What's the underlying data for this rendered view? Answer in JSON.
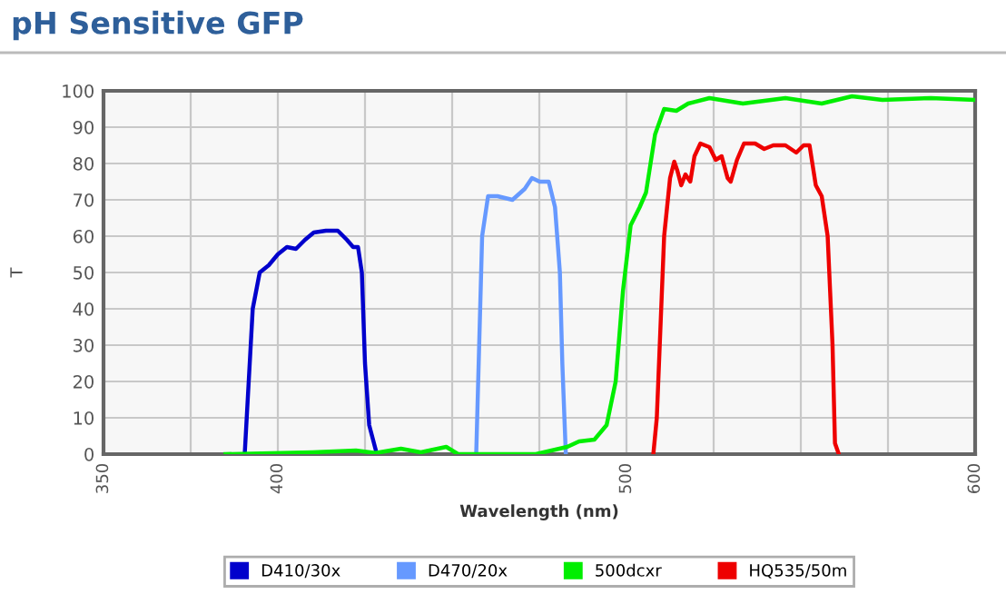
{
  "chart_data": {
    "type": "line",
    "title": "pH Sensitive GFP",
    "xlabel": "Wavelength (nm)",
    "ylabel": "T",
    "xlim": [
      350,
      600
    ],
    "ylim": [
      0,
      100
    ],
    "xticks": [
      350,
      {
        "value": 375,
        "label": null
      },
      400,
      {
        "value": 425,
        "label": null
      },
      {
        "value": 450,
        "label": null
      },
      {
        "value": 475,
        "label": null
      },
      500,
      {
        "value": 525,
        "label": null
      },
      {
        "value": 550,
        "label": null
      },
      {
        "value": 575,
        "label": null
      },
      600
    ],
    "yticks": [
      0,
      10,
      20,
      30,
      40,
      50,
      60,
      70,
      80,
      90,
      100
    ],
    "grid": true,
    "legend": "bottom",
    "marker": "none",
    "line_style": "solid",
    "series": [
      {
        "name": "D410/30x",
        "color": "#0000cc",
        "x": [
          390.5,
          392.8,
          394.8,
          397.4,
          400,
          402.6,
          405.2,
          407.8,
          410.3,
          413.8,
          417.2,
          419.8,
          421.6,
          423,
          424.1,
          425,
          426.2,
          428.4
        ],
        "values": [
          0,
          40,
          50,
          52,
          55,
          57,
          56.5,
          59,
          61,
          61.5,
          61.5,
          59,
          57,
          57,
          50,
          25,
          8,
          0
        ]
      },
      {
        "name": "D470/20x",
        "color": "#6699ff",
        "x": [
          456.9,
          458.6,
          460.3,
          463,
          467.3,
          470.8,
          472.9,
          475.1,
          477.7,
          479.5,
          480.9,
          481.6,
          482.6
        ],
        "values": [
          0,
          60,
          71,
          71,
          70,
          73,
          76,
          75,
          75,
          68,
          50,
          25,
          0
        ]
      },
      {
        "name": "500dcxr",
        "color": "#00ee00",
        "x": [
          385,
          410,
          422.4,
          428,
          435.3,
          441,
          448.3,
          451.7,
          474,
          483,
          486.4,
          490.8,
          494.3,
          496.9,
          499,
          501.2,
          503.8,
          505.6,
          508.2,
          510.8,
          514.3,
          517.7,
          523.8,
          533.4,
          545.6,
          556,
          564.7,
          573.4,
          587.3,
          599.5
        ],
        "values": [
          0,
          0.5,
          1,
          0.3,
          1.5,
          0.5,
          2,
          0,
          0,
          2,
          3.5,
          4,
          8,
          20,
          45,
          63,
          68,
          72,
          88,
          95,
          94.5,
          96.5,
          98,
          96.5,
          98,
          96.5,
          98.5,
          97.5,
          98,
          97.5
        ]
      },
      {
        "name": "HQ535/50m",
        "color": "#ee0000",
        "x": [
          507.7,
          508.7,
          510.8,
          512.5,
          513.7,
          514.6,
          515.7,
          516.9,
          518.3,
          519.5,
          521.2,
          523.8,
          525.6,
          527.3,
          529,
          529.9,
          531.7,
          533.7,
          536.9,
          539.5,
          542.1,
          545.6,
          548.7,
          550.8,
          552.5,
          554.3,
          556,
          557.7,
          559.1,
          559.8,
          560.9
        ],
        "values": [
          0,
          10,
          60,
          76,
          80.5,
          78,
          74,
          77,
          75,
          82,
          85.5,
          84.5,
          81,
          82,
          76,
          75,
          81,
          85.5,
          85.5,
          84,
          85,
          85,
          83,
          85,
          85,
          74,
          71,
          60,
          30,
          3,
          0
        ]
      }
    ]
  }
}
